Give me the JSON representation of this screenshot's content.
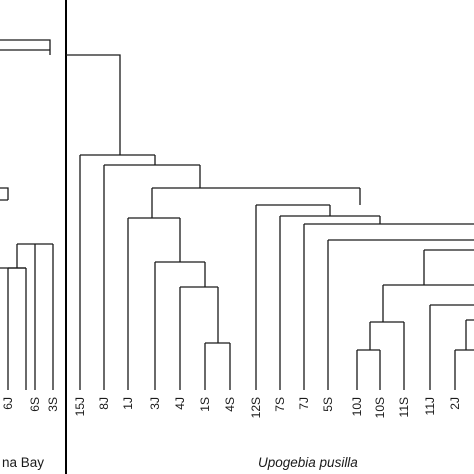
{
  "left_group": {
    "caption": "na Bay",
    "leaves": [
      "6J",
      "6S",
      "3S"
    ]
  },
  "right_group": {
    "caption": "Upogebia pusilla",
    "leaves": [
      "15J",
      "8J",
      "1J",
      "3J",
      "4J",
      "1S",
      "4S",
      "12S",
      "7S",
      "7J",
      "5S",
      "10J",
      "10S",
      "11S",
      "11J",
      "2J"
    ]
  }
}
